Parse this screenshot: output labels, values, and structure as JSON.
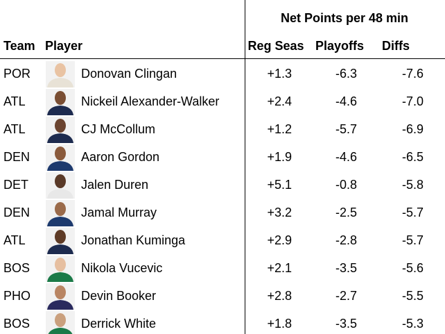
{
  "header": {
    "group": "Net Points per 48 min",
    "columns": [
      "Team",
      "Player",
      "Reg Seas",
      "Playoffs",
      "Diffs"
    ]
  },
  "table": {
    "rows": [
      [
        "POR",
        "Donovan Clingan",
        "+1.3",
        "-6.3",
        "-7.6"
      ],
      [
        "ATL",
        "Nickeil Alexander-Walker",
        "+2.4",
        "-4.6",
        "-7.0"
      ],
      [
        "ATL",
        "CJ McCollum",
        "+1.2",
        "-5.7",
        "-6.9"
      ],
      [
        "DEN",
        "Aaron Gordon",
        "+1.9",
        "-4.6",
        "-6.5"
      ],
      [
        "DET",
        "Jalen Duren",
        "+5.1",
        "-0.8",
        "-5.8"
      ],
      [
        "DEN",
        "Jamal Murray",
        "+3.2",
        "-2.5",
        "-5.7"
      ],
      [
        "ATL",
        "Jonathan Kuminga",
        "+2.9",
        "-2.8",
        "-5.7"
      ],
      [
        "BOS",
        "Nikola Vucevic",
        "+2.1",
        "-3.5",
        "-5.6"
      ],
      [
        "PHO",
        "Devin Booker",
        "+2.8",
        "-2.7",
        "-5.5"
      ],
      [
        "BOS",
        "Derrick White",
        "+1.8",
        "-3.5",
        "-5.3"
      ]
    ]
  }
}
